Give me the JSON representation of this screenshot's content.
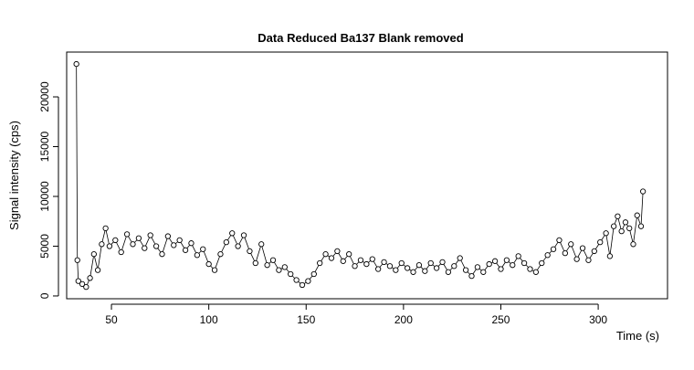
{
  "chart_data": {
    "type": "line",
    "title": "Data Reduced Ba137 Blank removed",
    "x_label": "Time (s)",
    "y_label": "Signal intensity (cps)",
    "x": [
      32,
      32.5,
      33,
      35,
      37,
      39,
      41,
      43,
      45,
      47,
      49,
      52,
      55,
      58,
      61,
      64,
      67,
      70,
      73,
      76,
      79,
      82,
      85,
      88,
      91,
      94,
      97,
      100,
      103,
      106,
      109,
      112,
      115,
      118,
      121,
      124,
      127,
      130,
      133,
      136,
      139,
      142,
      145,
      148,
      151,
      154,
      157,
      160,
      163,
      166,
      169,
      172,
      175,
      178,
      181,
      184,
      187,
      190,
      193,
      196,
      199,
      202,
      205,
      208,
      211,
      214,
      217,
      220,
      223,
      226,
      229,
      232,
      235,
      238,
      241,
      244,
      247,
      250,
      253,
      256,
      259,
      262,
      265,
      268,
      271,
      274,
      277,
      280,
      283,
      286,
      289,
      292,
      295,
      298,
      301,
      304,
      306,
      308,
      310,
      312,
      314,
      316,
      318,
      320,
      322,
      323
    ],
    "series": [
      {
        "color": "#000000",
        "values": [
          23300,
          3600,
          1500,
          1200,
          900,
          1800,
          4200,
          2600,
          5200,
          6800,
          5000,
          5600,
          4400,
          6200,
          5200,
          5800,
          4800,
          6100,
          5000,
          4200,
          6000,
          5100,
          5600,
          4600,
          5300,
          4100,
          4700,
          3200,
          2600,
          4200,
          5400,
          6300,
          5000,
          6100,
          4500,
          3300,
          5200,
          3100,
          3600,
          2600,
          2900,
          2200,
          1600,
          1100,
          1500,
          2200,
          3300,
          4200,
          3800,
          4500,
          3500,
          4200,
          3000,
          3600,
          3200,
          3700,
          2700,
          3400,
          3000,
          2600,
          3300,
          2800,
          2400,
          3100,
          2500,
          3300,
          2800,
          3400,
          2400,
          3000,
          3800,
          2600,
          2000,
          2900,
          2400,
          3200,
          3500,
          2700,
          3600,
          3100,
          4000,
          3300,
          2700,
          2400,
          3300,
          4100,
          4700,
          5600,
          4300,
          5200,
          3700,
          4800,
          3600,
          4500,
          5400,
          6300,
          4000,
          7000,
          8000,
          6500,
          7400,
          6800,
          5200,
          8100,
          7000,
          10500
        ]
      }
    ],
    "xlim": [
      27,
      335.6
    ],
    "ylim": [
      -280,
      24500
    ],
    "xticks": [
      50,
      100,
      150,
      200,
      250,
      300
    ],
    "yticks": [
      0,
      5000,
      10000,
      15000,
      20000
    ]
  }
}
